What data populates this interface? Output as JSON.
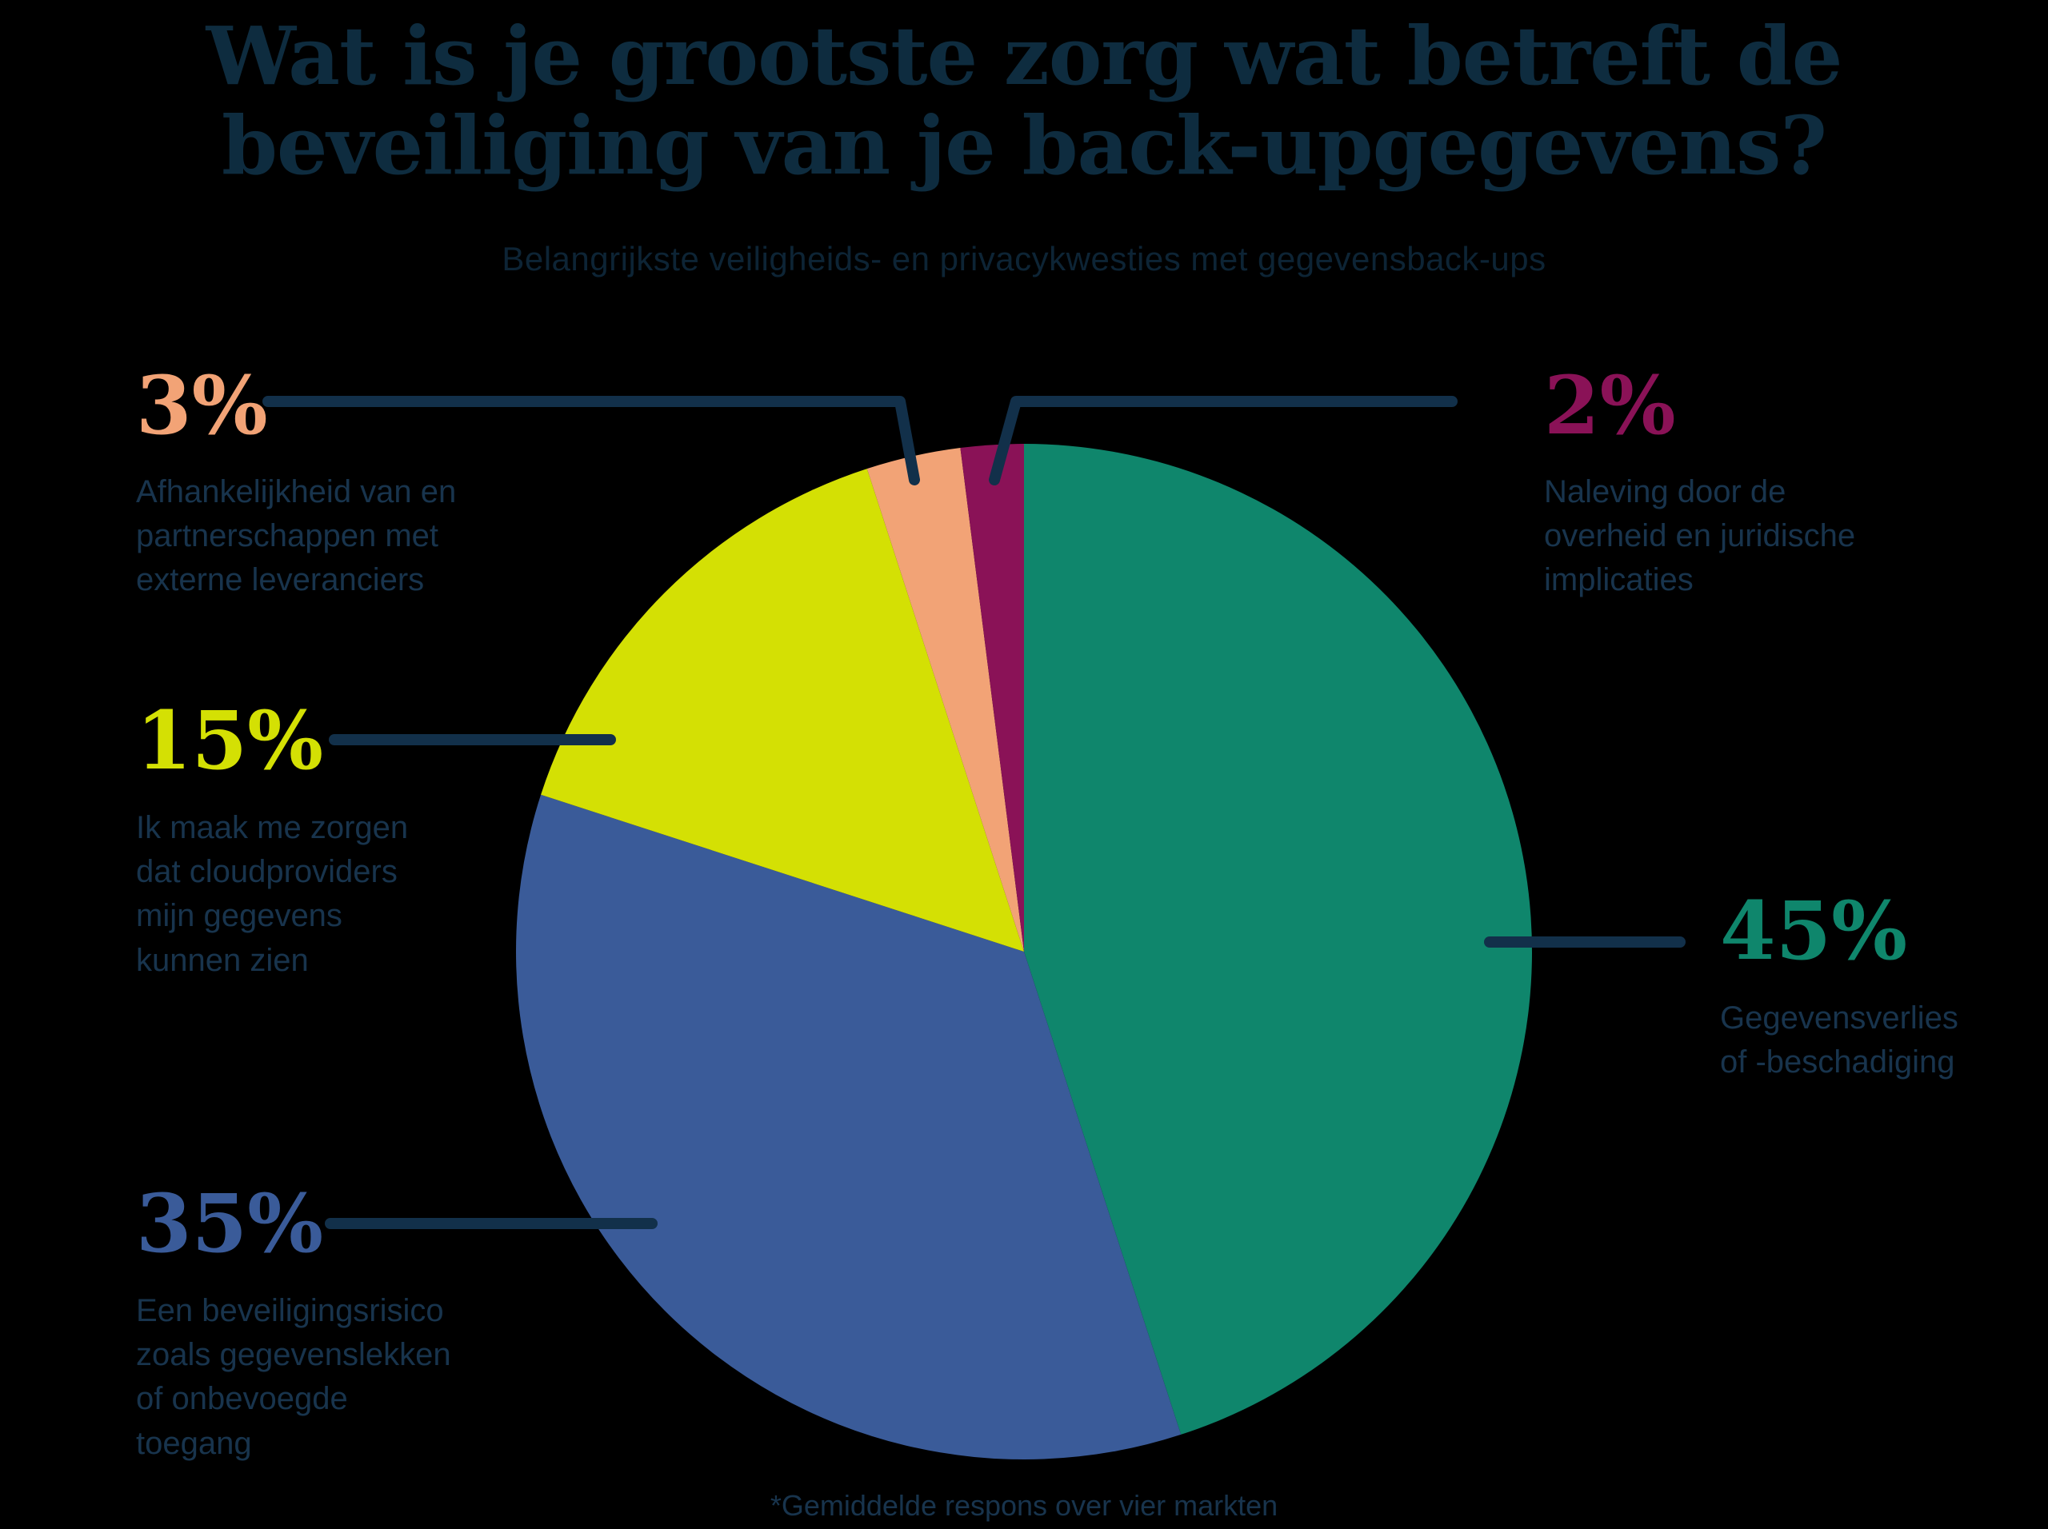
{
  "header": {
    "title": "Wat is je grootste zorg wat betreft de\nbeveiliging van je back-upgegevens?",
    "subtitle": "Belangrijkste veiligheids- en privacykwesties met gegevensback-ups"
  },
  "footnote": "*Gemiddelde respons over vier markten",
  "colors": {
    "background": "#000000",
    "title_navy": "#0e2c3f",
    "subtitle_navy": "#0d2435",
    "body_text_navy": "#18344d",
    "leader_line_navy": "#12304a"
  },
  "chart_data": {
    "type": "pie",
    "title": "Wat is je grootste zorg wat betreft de beveiliging van je back-upgegevens?",
    "subtitle": "Belangrijkste veiligheids- en privacykwesties met gegevensback-ups",
    "footnote": "*Gemiddelde respons over vier markten",
    "start_angle_deg": 0,
    "direction": "clockwise",
    "legend_position": "callouts",
    "slices": [
      {
        "pct_label": "45%",
        "value_pct": 45,
        "color": "#0f866c",
        "label": "Gegevensverlies\nof -beschadiging"
      },
      {
        "pct_label": "35%",
        "value_pct": 35,
        "color": "#3a5b99",
        "label": "Een beveiligingsrisico\nzoals gegevenslekken\nof onbevoegde\ntoegang"
      },
      {
        "pct_label": "15%",
        "value_pct": 15,
        "color": "#d4e004",
        "label": "Ik maak me zorgen\ndat cloudproviders\nmijn gegevens\nkunnen zien"
      },
      {
        "pct_label": "3%",
        "value_pct": 3,
        "color": "#f2a376",
        "label": "Afhankelijkheid van en\npartnerschappen met\nexterne leveranciers"
      },
      {
        "pct_label": "2%",
        "value_pct": 2,
        "color": "#8a1257",
        "label": "Naleving door de\noverheid en juridische\nimplicaties"
      }
    ]
  }
}
